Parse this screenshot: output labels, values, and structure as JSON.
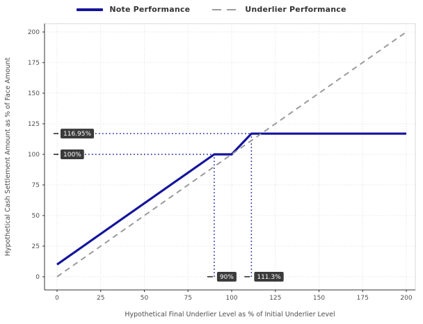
{
  "legend": {
    "position": "top",
    "items": [
      {
        "label": "Note Performance",
        "color": "#14149c",
        "style": "solid"
      },
      {
        "label": "Underlier Performance",
        "color": "#9a9a9a",
        "style": "dashed"
      }
    ]
  },
  "chart_data": {
    "type": "line",
    "title": "",
    "xlabel": "Hypothetical Final Underlier Level as % of Initial Underlier Level",
    "ylabel": "Hypothetical Cash Settlement Amount as % of Face Amount",
    "xlim": [
      0,
      200
    ],
    "ylim": [
      0,
      200
    ],
    "xticks": [
      0,
      25,
      50,
      75,
      100,
      125,
      150,
      175,
      200
    ],
    "yticks": [
      0,
      25,
      50,
      75,
      100,
      125,
      150,
      175,
      200
    ],
    "grid": true,
    "legend_position": "top",
    "colors": {
      "grid": "#d9d9d9",
      "axis": "#333333",
      "tick_label": "#4d4d4d",
      "annotation_bg": "#3b3b3b",
      "annotation_text": "#ffffff",
      "reference": "#14149c"
    },
    "series": [
      {
        "name": "Note Performance",
        "color": "#14149c",
        "dash": "solid",
        "width": 3.2,
        "points": [
          [
            0,
            10
          ],
          [
            90,
            100
          ],
          [
            100,
            100
          ],
          [
            111.3,
            116.95
          ],
          [
            200,
            116.95
          ]
        ]
      },
      {
        "name": "Underlier Performance",
        "color": "#9a9a9a",
        "dash": "dashed",
        "width": 2,
        "points": [
          [
            0,
            0
          ],
          [
            200,
            200
          ]
        ]
      }
    ],
    "reference_lines": [
      {
        "type": "h",
        "value": 116.95,
        "from": 0,
        "to": 111.3,
        "color": "#14149c"
      },
      {
        "type": "h",
        "value": 100,
        "from": 0,
        "to": 100,
        "color": "#14149c"
      },
      {
        "type": "v",
        "value": 90,
        "from": 0,
        "to": 100,
        "color": "#14149c"
      },
      {
        "type": "v",
        "value": 111.3,
        "from": 0,
        "to": 116.95,
        "color": "#14149c"
      }
    ],
    "annotations": [
      {
        "text": "116.95%",
        "axis": "y",
        "value": 116.95
      },
      {
        "text": "100%",
        "axis": "y",
        "value": 100
      },
      {
        "text": "90%",
        "axis": "x",
        "value": 90
      },
      {
        "text": "111.3%",
        "axis": "x",
        "value": 111.3
      }
    ]
  }
}
